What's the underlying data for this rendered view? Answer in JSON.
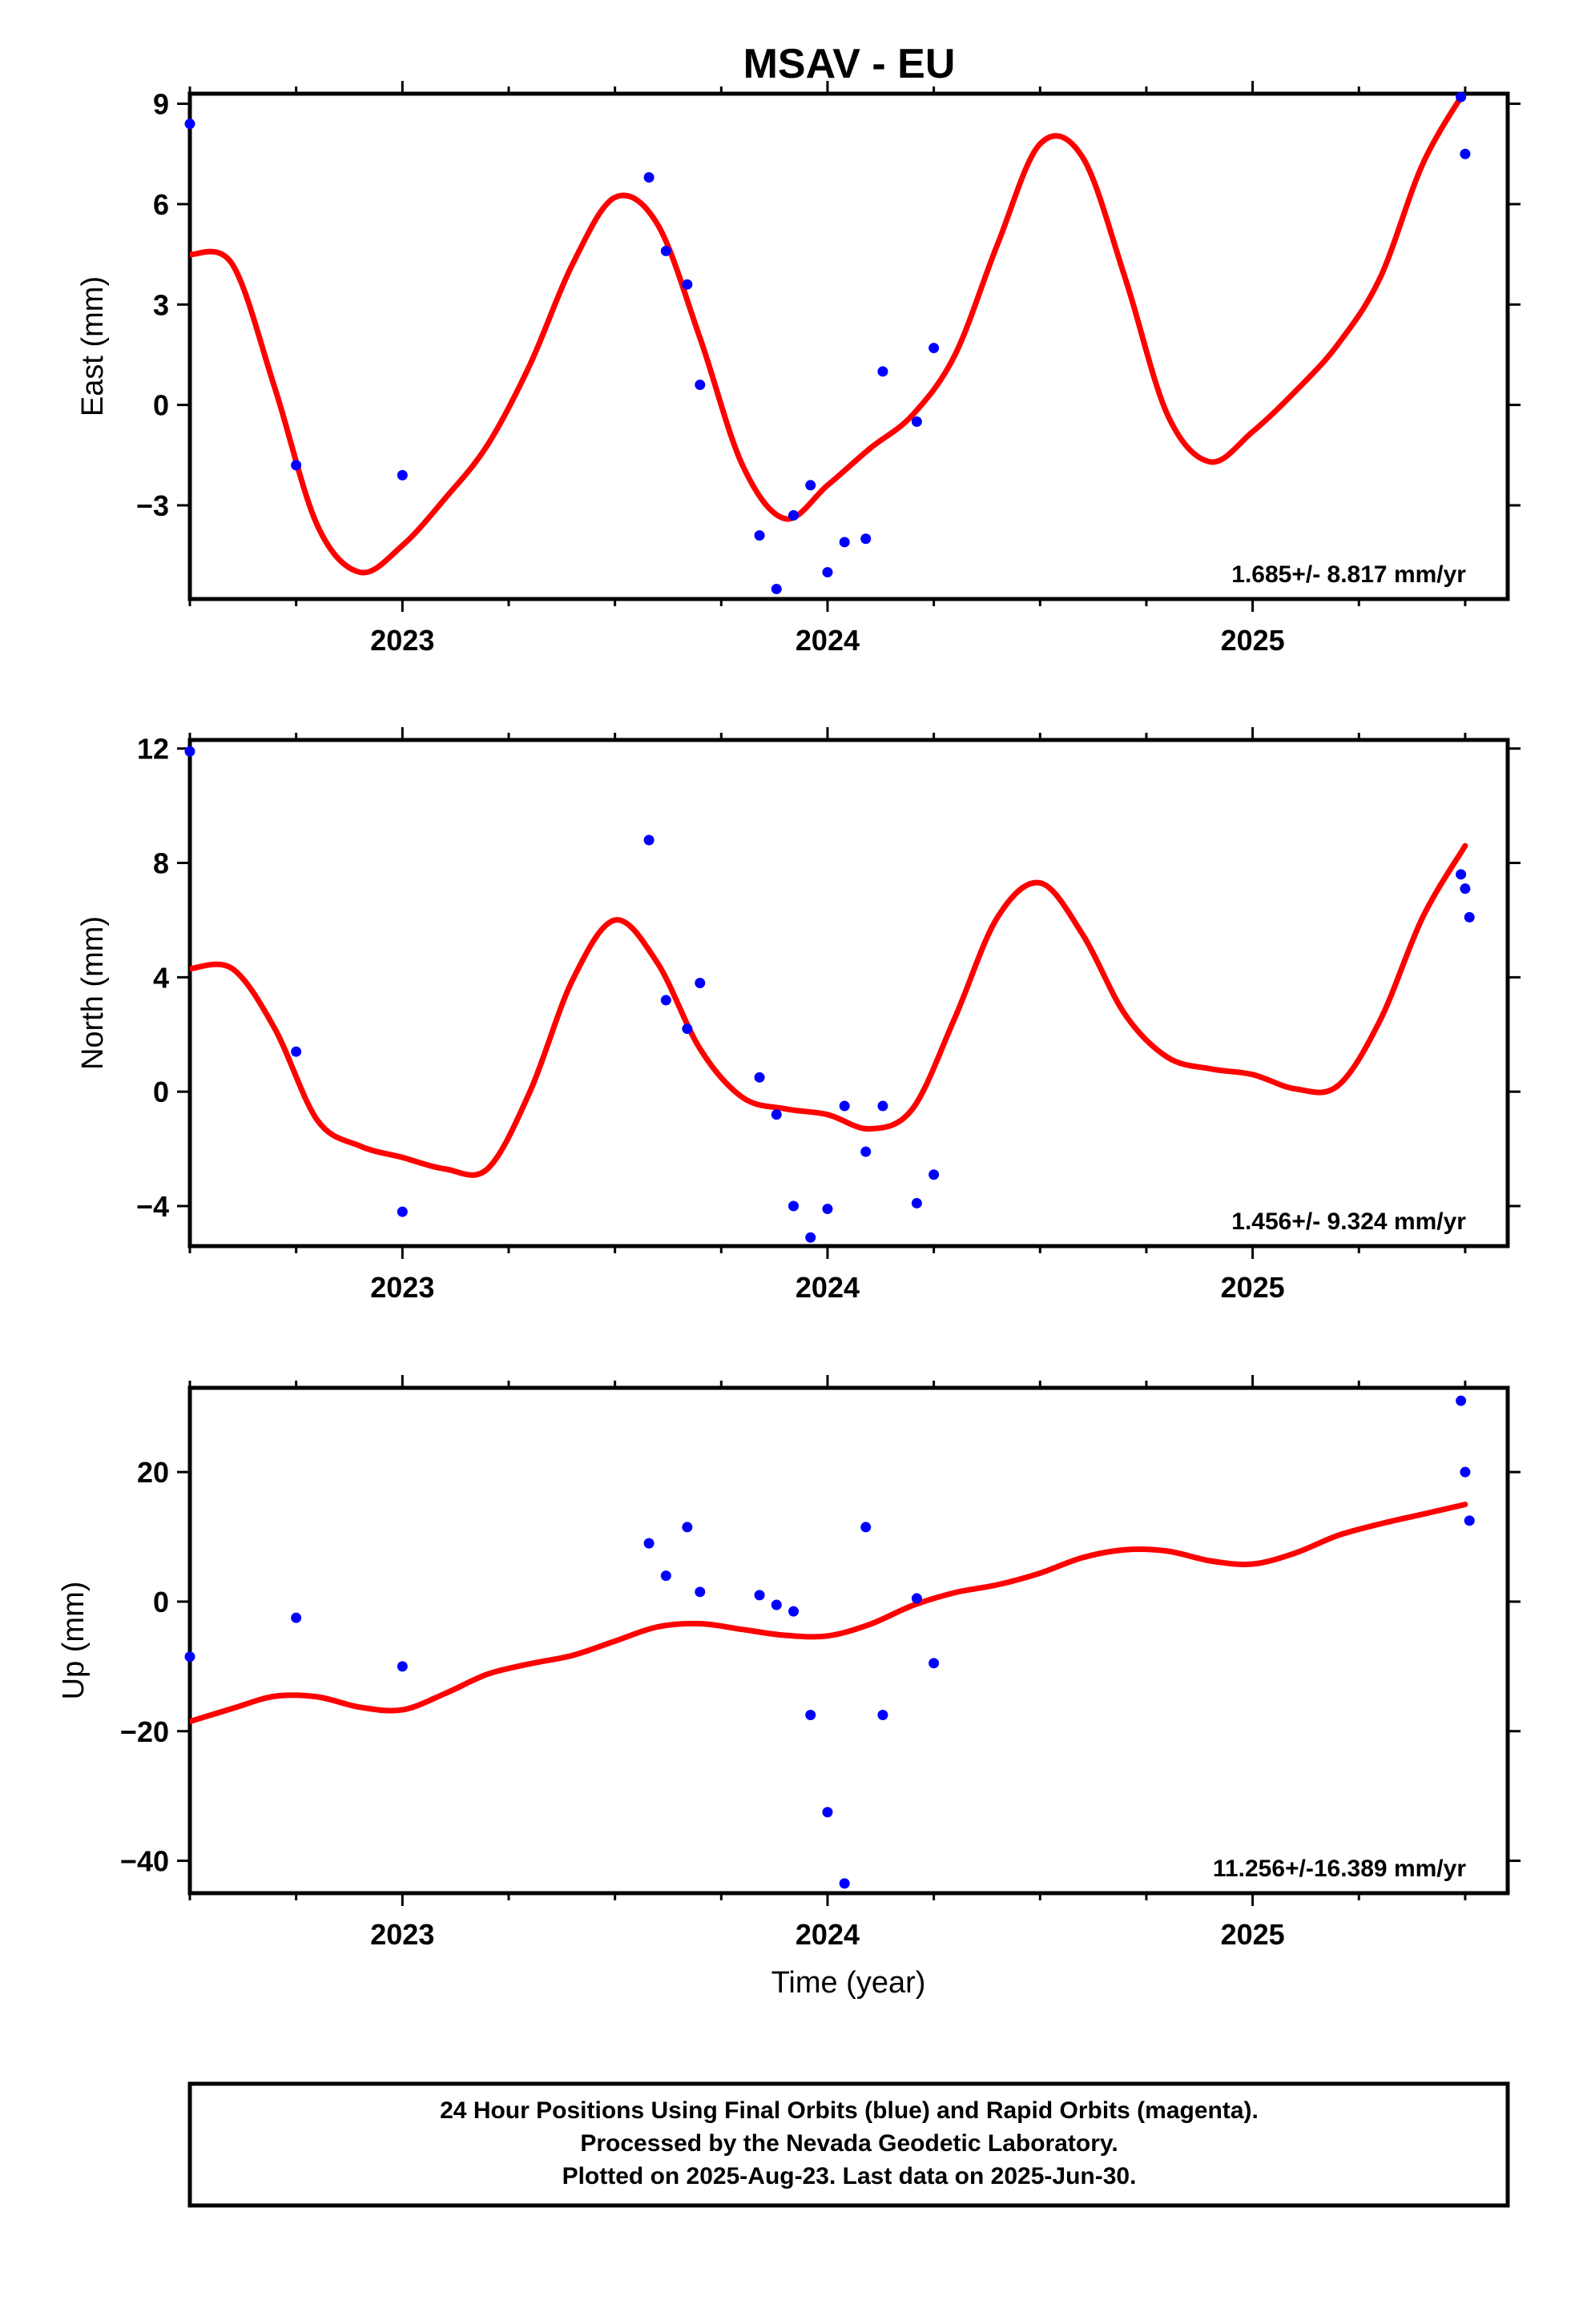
{
  "title": "MSAV - EU",
  "xlabel": "Time (year)",
  "footer": [
    "24 Hour Positions Using Final Orbits (blue) and Rapid Orbits (magenta).",
    "Processed by the Nevada Geodetic Laboratory.",
    "Plotted on 2025-Aug-23. Last data on 2025-Jun-30."
  ],
  "colors": {
    "points": "#0000ff",
    "fit": "#ff0000",
    "frame": "#000000"
  },
  "chart_data": [
    {
      "type": "scatter",
      "ylabel": "East (mm)",
      "xlim": [
        2022.5,
        2025.6
      ],
      "ylim": [
        -5.8,
        9.3
      ],
      "x_ticks": [
        2023,
        2024,
        2025
      ],
      "x_tick_labels": [
        "2023",
        "2024",
        "2025"
      ],
      "y_ticks": [
        9,
        6,
        3,
        0,
        -3
      ],
      "y_tick_labels": [
        "9",
        "6",
        "3",
        "0",
        "−3"
      ],
      "rate_text": "1.685+/- 8.817 mm/yr",
      "points": [
        [
          2022.5,
          8.4
        ],
        [
          2022.75,
          -1.8
        ],
        [
          2023.0,
          -2.1
        ],
        [
          2023.58,
          6.8
        ],
        [
          2023.62,
          4.6
        ],
        [
          2023.67,
          3.6
        ],
        [
          2023.7,
          0.6
        ],
        [
          2023.84,
          -3.9
        ],
        [
          2023.88,
          -5.5
        ],
        [
          2023.92,
          -3.3
        ],
        [
          2023.96,
          -2.4
        ],
        [
          2024.0,
          -5.0
        ],
        [
          2024.04,
          -4.1
        ],
        [
          2024.09,
          -4.0
        ],
        [
          2024.13,
          1.0
        ],
        [
          2024.21,
          -0.5
        ],
        [
          2024.25,
          1.7
        ],
        [
          2025.49,
          9.2
        ],
        [
          2025.5,
          7.5
        ]
      ],
      "fit": [
        [
          2022.5,
          4.5
        ],
        [
          2022.6,
          4.2
        ],
        [
          2022.7,
          0.5
        ],
        [
          2022.8,
          -3.6
        ],
        [
          2022.9,
          -5.0
        ],
        [
          2023.0,
          -4.2
        ],
        [
          2023.1,
          -2.8
        ],
        [
          2023.2,
          -1.2
        ],
        [
          2023.3,
          1.2
        ],
        [
          2023.4,
          4.2
        ],
        [
          2023.5,
          6.2
        ],
        [
          2023.6,
          5.4
        ],
        [
          2023.7,
          2.0
        ],
        [
          2023.8,
          -1.8
        ],
        [
          2023.9,
          -3.4
        ],
        [
          2024.0,
          -2.4
        ],
        [
          2024.1,
          -1.3
        ],
        [
          2024.2,
          -0.3
        ],
        [
          2024.3,
          1.5
        ],
        [
          2024.4,
          4.8
        ],
        [
          2024.5,
          7.8
        ],
        [
          2024.6,
          7.4
        ],
        [
          2024.7,
          3.8
        ],
        [
          2024.8,
          -0.3
        ],
        [
          2024.9,
          -1.7
        ],
        [
          2025.0,
          -0.8
        ],
        [
          2025.1,
          0.4
        ],
        [
          2025.2,
          1.8
        ],
        [
          2025.3,
          3.8
        ],
        [
          2025.4,
          7.2
        ],
        [
          2025.5,
          9.4
        ]
      ]
    },
    {
      "type": "scatter",
      "ylabel": "North (mm)",
      "xlim": [
        2022.5,
        2025.6
      ],
      "ylim": [
        -5.4,
        12.3
      ],
      "x_ticks": [
        2023,
        2024,
        2025
      ],
      "x_tick_labels": [
        "2023",
        "2024",
        "2025"
      ],
      "y_ticks": [
        12,
        8,
        4,
        0,
        -4
      ],
      "y_tick_labels": [
        "12",
        "8",
        "4",
        "0",
        "−4"
      ],
      "rate_text": "1.456+/- 9.324 mm/yr",
      "points": [
        [
          2022.5,
          11.9
        ],
        [
          2022.75,
          1.4
        ],
        [
          2023.0,
          -4.2
        ],
        [
          2023.58,
          8.8
        ],
        [
          2023.62,
          3.2
        ],
        [
          2023.67,
          2.2
        ],
        [
          2023.7,
          3.8
        ],
        [
          2023.84,
          0.5
        ],
        [
          2023.88,
          -0.8
        ],
        [
          2023.92,
          -4.0
        ],
        [
          2023.96,
          -5.1
        ],
        [
          2024.0,
          -4.1
        ],
        [
          2024.04,
          -0.5
        ],
        [
          2024.09,
          -2.1
        ],
        [
          2024.13,
          -0.5
        ],
        [
          2024.21,
          -3.9
        ],
        [
          2024.25,
          -2.9
        ],
        [
          2025.49,
          7.6
        ],
        [
          2025.5,
          7.1
        ],
        [
          2025.51,
          6.1
        ]
      ],
      "fit": [
        [
          2022.5,
          4.3
        ],
        [
          2022.6,
          4.3
        ],
        [
          2022.7,
          2.2
        ],
        [
          2022.8,
          -1.0
        ],
        [
          2022.9,
          -1.9
        ],
        [
          2023.0,
          -2.3
        ],
        [
          2023.1,
          -2.7
        ],
        [
          2023.2,
          -2.7
        ],
        [
          2023.3,
          0.0
        ],
        [
          2023.4,
          3.9
        ],
        [
          2023.5,
          6.0
        ],
        [
          2023.6,
          4.5
        ],
        [
          2023.7,
          1.5
        ],
        [
          2023.8,
          -0.2
        ],
        [
          2023.9,
          -0.6
        ],
        [
          2024.0,
          -0.8
        ],
        [
          2024.1,
          -1.3
        ],
        [
          2024.2,
          -0.6
        ],
        [
          2024.3,
          2.6
        ],
        [
          2024.4,
          6.1
        ],
        [
          2024.5,
          7.3
        ],
        [
          2024.6,
          5.5
        ],
        [
          2024.7,
          2.7
        ],
        [
          2024.8,
          1.2
        ],
        [
          2024.9,
          0.8
        ],
        [
          2025.0,
          0.6
        ],
        [
          2025.1,
          0.1
        ],
        [
          2025.2,
          0.2
        ],
        [
          2025.3,
          2.5
        ],
        [
          2025.4,
          6.1
        ],
        [
          2025.5,
          8.6
        ]
      ]
    },
    {
      "type": "scatter",
      "ylabel": "Up (mm)",
      "xlim": [
        2022.5,
        2025.6
      ],
      "ylim": [
        -45,
        33
      ],
      "x_ticks": [
        2023,
        2024,
        2025
      ],
      "x_tick_labels": [
        "2023",
        "2024",
        "2025"
      ],
      "y_ticks": [
        20,
        0,
        -20,
        -40
      ],
      "y_tick_labels": [
        "20",
        "0",
        "−20",
        "−40"
      ],
      "rate_text": "11.256+/-16.389 mm/yr",
      "points": [
        [
          2022.5,
          -8.5
        ],
        [
          2022.75,
          -2.5
        ],
        [
          2023.0,
          -10.0
        ],
        [
          2023.58,
          9.0
        ],
        [
          2023.62,
          4.0
        ],
        [
          2023.67,
          11.5
        ],
        [
          2023.7,
          1.5
        ],
        [
          2023.84,
          1.0
        ],
        [
          2023.88,
          -0.5
        ],
        [
          2023.92,
          -1.5
        ],
        [
          2023.96,
          -17.5
        ],
        [
          2024.0,
          -32.5
        ],
        [
          2024.04,
          -43.5
        ],
        [
          2024.09,
          11.5
        ],
        [
          2024.13,
          -17.5
        ],
        [
          2024.21,
          0.5
        ],
        [
          2024.25,
          -9.5
        ],
        [
          2025.49,
          31.0
        ],
        [
          2025.5,
          20.0
        ],
        [
          2025.51,
          12.5
        ]
      ],
      "fit": [
        [
          2022.5,
          -18.5
        ],
        [
          2022.6,
          -16.5
        ],
        [
          2022.7,
          -14.6
        ],
        [
          2022.8,
          -14.7
        ],
        [
          2022.9,
          -16.3
        ],
        [
          2023.0,
          -16.7
        ],
        [
          2023.1,
          -14.2
        ],
        [
          2023.2,
          -11.2
        ],
        [
          2023.3,
          -9.6
        ],
        [
          2023.4,
          -8.3
        ],
        [
          2023.5,
          -6.1
        ],
        [
          2023.6,
          -3.9
        ],
        [
          2023.7,
          -3.4
        ],
        [
          2023.8,
          -4.3
        ],
        [
          2023.9,
          -5.2
        ],
        [
          2024.0,
          -5.3
        ],
        [
          2024.1,
          -3.5
        ],
        [
          2024.2,
          -0.6
        ],
        [
          2024.3,
          1.4
        ],
        [
          2024.4,
          2.6
        ],
        [
          2024.5,
          4.4
        ],
        [
          2024.6,
          6.8
        ],
        [
          2024.7,
          8.0
        ],
        [
          2024.8,
          7.8
        ],
        [
          2024.9,
          6.3
        ],
        [
          2025.0,
          5.8
        ],
        [
          2025.1,
          7.5
        ],
        [
          2025.2,
          10.2
        ],
        [
          2025.3,
          12.0
        ],
        [
          2025.4,
          13.5
        ],
        [
          2025.5,
          15.0
        ]
      ]
    }
  ]
}
